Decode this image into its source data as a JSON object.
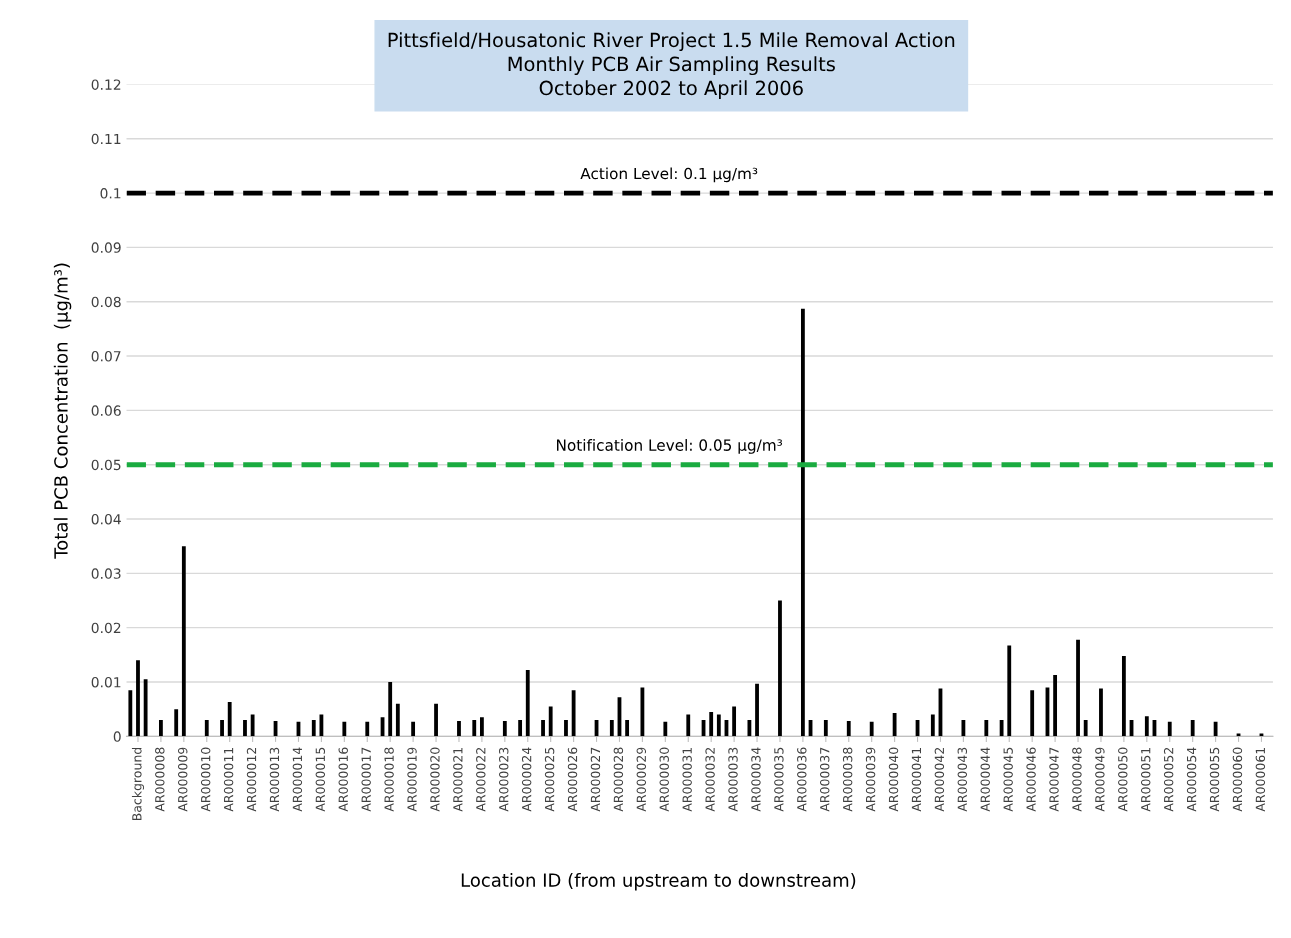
{
  "chart_data": {
    "type": "bar",
    "title": "Pittsfield/Housatonic River Project 1.5 Mile Removal Action\nMonthly PCB Air Sampling Results\nOctober 2002 to April 2006",
    "xlabel": "Location ID (from upstream to downstream)",
    "ylabel": "Total PCB Concentration  (µg/m³)",
    "categories": [
      null,
      "Background",
      null,
      null,
      "AR000008",
      null,
      null,
      "AR000009",
      null,
      null,
      "AR000010",
      null,
      null,
      "AR000011",
      null,
      null,
      "AR000012",
      null,
      null,
      "AR000013",
      null,
      null,
      "AR000014",
      null,
      null,
      "AR000015",
      null,
      null,
      "AR000016",
      null,
      null,
      "AR000017",
      null,
      null,
      "AR000018",
      null,
      null,
      "AR000019",
      null,
      null,
      "AR000020",
      null,
      null,
      "AR000021",
      null,
      null,
      "AR000022",
      null,
      null,
      "AR000023",
      null,
      null,
      "AR000024",
      null,
      null,
      "AR000025",
      null,
      null,
      "AR000026",
      null,
      null,
      "AR000027",
      null,
      null,
      "AR000028",
      null,
      null,
      "AR000029",
      null,
      null,
      "AR000030",
      null,
      null,
      "AR000031",
      null,
      null,
      "AR000032",
      null,
      null,
      "AR000033",
      null,
      null,
      "AR000034",
      null,
      null,
      "AR000035",
      null,
      null,
      "AR000036",
      null,
      null,
      "AR000037",
      null,
      null,
      "AR000038",
      null,
      null,
      "AR000039",
      null,
      null,
      "AR000040",
      null,
      null,
      "AR000041",
      null,
      null,
      "AR000042",
      null,
      null,
      "AR000043",
      null,
      null,
      "AR000044",
      null,
      null,
      "AR000045",
      null,
      null,
      "AR000046",
      null,
      null,
      "AR000047",
      null,
      null,
      "AR000048",
      null,
      null,
      "AR000049",
      null,
      null,
      "AR000050",
      null,
      null,
      "AR000051",
      null,
      null,
      "AR000052",
      null,
      null,
      "AR000054",
      null,
      null,
      "AR000055",
      null,
      null,
      "AR000060",
      null,
      null,
      "AR000061",
      null
    ],
    "series": [
      {
        "color": "#000000",
        "values": [
          0.0085,
          0.014,
          0.0105,
          null,
          0.003,
          null,
          0.005,
          0.035,
          null,
          null,
          0.003,
          null,
          0.003,
          0.0063,
          null,
          0.003,
          0.004,
          null,
          null,
          0.0028,
          null,
          null,
          0.0027,
          null,
          0.003,
          0.004,
          null,
          null,
          0.0027,
          null,
          null,
          0.0027,
          null,
          0.0035,
          0.01,
          0.006,
          null,
          0.0027,
          null,
          null,
          0.006,
          null,
          null,
          0.0028,
          null,
          0.003,
          0.0035,
          null,
          null,
          0.0028,
          null,
          0.003,
          0.0122,
          null,
          0.003,
          0.0055,
          null,
          0.003,
          0.0085,
          null,
          null,
          0.003,
          null,
          0.003,
          0.0072,
          0.003,
          null,
          0.009,
          null,
          null,
          0.0027,
          null,
          null,
          0.004,
          null,
          0.003,
          0.0045,
          0.004,
          0.003,
          0.0055,
          null,
          0.003,
          0.0097,
          null,
          null,
          0.025,
          null,
          null,
          0.0787,
          0.003,
          null,
          0.003,
          null,
          null,
          0.0028,
          null,
          null,
          0.0027,
          null,
          null,
          0.0043,
          null,
          null,
          0.003,
          null,
          0.004,
          0.0088,
          null,
          null,
          0.003,
          null,
          null,
          0.003,
          null,
          0.003,
          0.0167,
          null,
          null,
          0.0085,
          null,
          0.009,
          0.0113,
          null,
          null,
          0.0178,
          0.003,
          null,
          0.0088,
          null,
          null,
          0.0148,
          0.003,
          null,
          0.0037,
          0.003,
          null,
          0.0027,
          null,
          null,
          0.003,
          null,
          null,
          0.0027,
          null,
          null,
          0.0005,
          null,
          null,
          0.0005,
          null
        ]
      }
    ],
    "ylim": [
      0,
      0.12
    ],
    "yticks": [
      0,
      0.01,
      0.02,
      0.03,
      0.04,
      0.05,
      0.06,
      0.07,
      0.08,
      0.09,
      0.1,
      0.11,
      0.12
    ],
    "grid": "y",
    "ref_lines": [
      {
        "axis": "y",
        "value": 0.1,
        "label": "Action Level: 0.1 µg/m³",
        "color": "#000000",
        "line_style": "dashed"
      },
      {
        "axis": "y",
        "value": 0.05,
        "label": "Notification Level: 0.05 µg/m³",
        "color": "#1aab40",
        "line_style": "dashed"
      }
    ]
  }
}
